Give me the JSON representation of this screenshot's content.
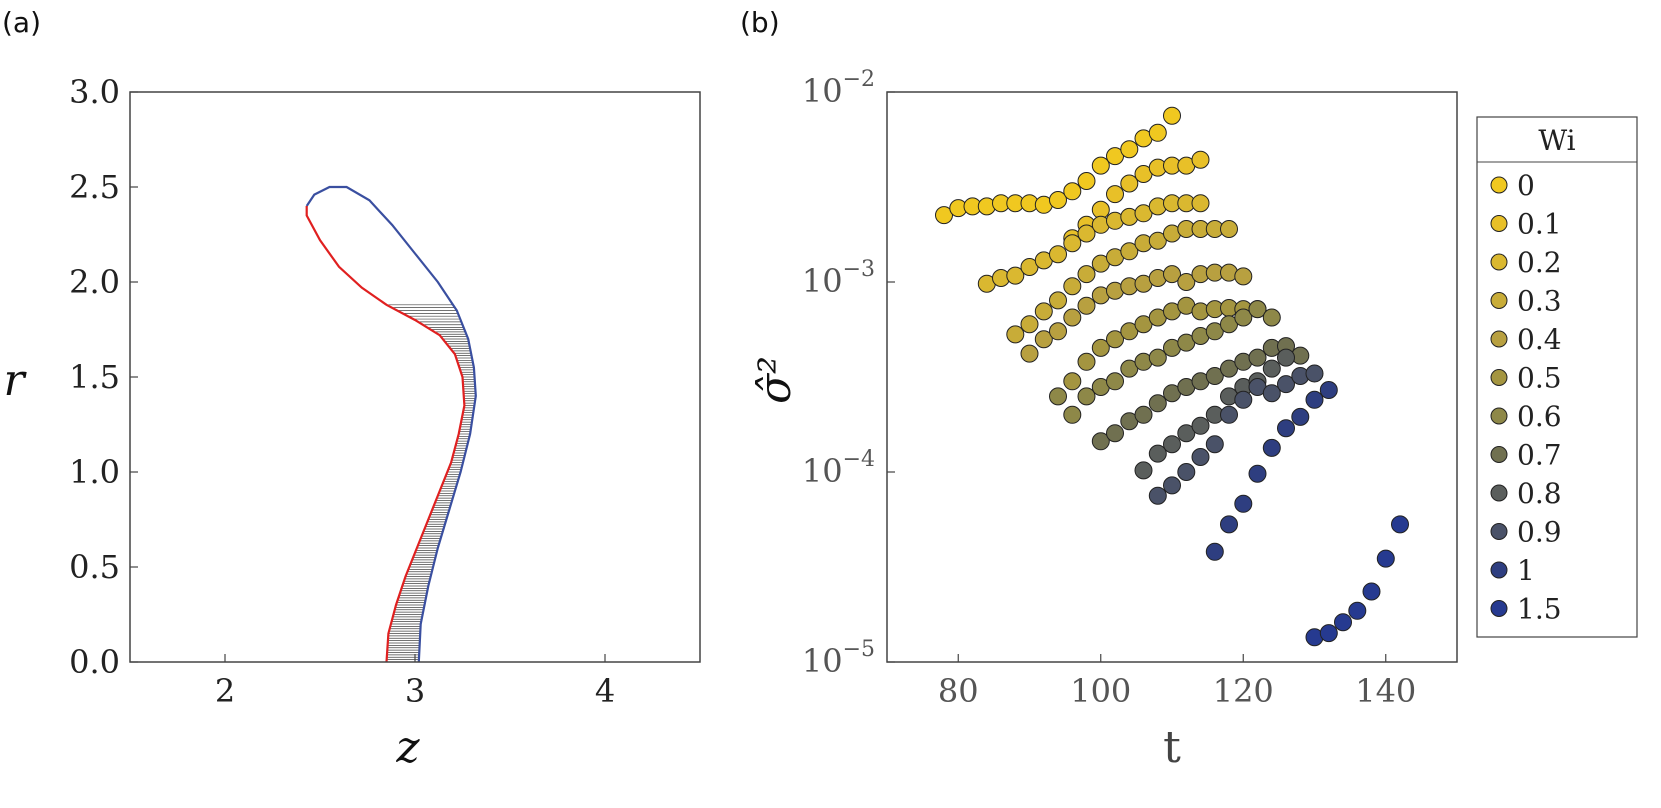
{
  "chart_data": [
    {
      "panel_label": "(a)",
      "type": "line",
      "xlabel": "z",
      "ylabel": "r",
      "xlim": [
        1.5,
        4.5
      ],
      "ylim": [
        0.0,
        3.0
      ],
      "xticks": [
        "2",
        "3",
        "4"
      ],
      "yticks": [
        "0.0",
        "0.5",
        "1.0",
        "1.5",
        "2.0",
        "2.5",
        "3.0"
      ],
      "grid": false,
      "colors": {
        "outer": "#3a4fa0",
        "inner": "#e02020",
        "hatch": "#444444"
      },
      "series": [
        {
          "values": [
            [
              3.02,
              0.0
            ],
            [
              3.03,
              0.2
            ],
            [
              3.07,
              0.4
            ],
            [
              3.12,
              0.6
            ],
            [
              3.18,
              0.8
            ],
            [
              3.24,
              1.0
            ],
            [
              3.29,
              1.2
            ],
            [
              3.32,
              1.4
            ],
            [
              3.31,
              1.55
            ],
            [
              3.28,
              1.7
            ],
            [
              3.22,
              1.85
            ],
            [
              3.12,
              2.0
            ],
            [
              3.0,
              2.15
            ],
            [
              2.88,
              2.3
            ],
            [
              2.76,
              2.43
            ],
            [
              2.64,
              2.5
            ],
            [
              2.55,
              2.5
            ],
            [
              2.47,
              2.46
            ],
            [
              2.43,
              2.4
            ]
          ]
        },
        {
          "values": [
            [
              2.85,
              0.0
            ],
            [
              2.86,
              0.15
            ],
            [
              2.9,
              0.3
            ],
            [
              2.95,
              0.45
            ],
            [
              3.01,
              0.6
            ],
            [
              3.07,
              0.75
            ],
            [
              3.13,
              0.9
            ],
            [
              3.19,
              1.05
            ],
            [
              3.23,
              1.2
            ],
            [
              3.26,
              1.35
            ],
            [
              3.25,
              1.5
            ],
            [
              3.21,
              1.62
            ],
            [
              3.13,
              1.72
            ],
            [
              3.0,
              1.8
            ],
            [
              2.85,
              1.88
            ],
            [
              2.72,
              1.97
            ],
            [
              2.6,
              2.08
            ],
            [
              2.5,
              2.22
            ],
            [
              2.43,
              2.35
            ],
            [
              2.43,
              2.4
            ]
          ]
        }
      ]
    },
    {
      "panel_label": "(b)",
      "type": "scatter",
      "xlabel": "t",
      "ylabel": "σ̂²",
      "xlim": [
        70,
        150
      ],
      "ylim": [
        1e-05,
        0.01
      ],
      "yscale": "log",
      "xticks": [
        "80",
        "100",
        "120",
        "140"
      ],
      "yticks": [
        {
          "base": "10",
          "exp": "−2"
        },
        {
          "base": "10",
          "exp": "−3"
        },
        {
          "base": "10",
          "exp": "−4"
        },
        {
          "base": "10",
          "exp": "−5"
        }
      ],
      "grid": false,
      "legend": {
        "title": "Wi",
        "position": "right, outside"
      },
      "series": [
        {
          "name": "0",
          "color": "#f0c820",
          "x": [
            78,
            80,
            82,
            84,
            86,
            88,
            90,
            92,
            94,
            96,
            98,
            100,
            102,
            104,
            106,
            108,
            110
          ],
          "y": [
            0.00225,
            0.00245,
            0.0025,
            0.0025,
            0.0026,
            0.0026,
            0.0026,
            0.00255,
            0.0027,
            0.003,
            0.0034,
            0.0041,
            0.0046,
            0.005,
            0.0057,
            0.0061,
            0.0075
          ]
        },
        {
          "name": "0.1",
          "color": "#e8c028",
          "x": [
            96,
            98,
            100,
            102,
            104,
            106,
            108,
            110,
            112,
            114
          ],
          "y": [
            0.0017,
            0.002,
            0.0024,
            0.0029,
            0.0033,
            0.0037,
            0.004,
            0.0041,
            0.0041,
            0.0044
          ]
        },
        {
          "name": "0.2",
          "color": "#dab830",
          "x": [
            84,
            86,
            88,
            90,
            92,
            94,
            96,
            98,
            100,
            102,
            104,
            106,
            108,
            110,
            112,
            114
          ],
          "y": [
            0.00098,
            0.00105,
            0.00108,
            0.0012,
            0.0013,
            0.0014,
            0.0016,
            0.0018,
            0.002,
            0.0021,
            0.0022,
            0.0023,
            0.0025,
            0.0026,
            0.0026,
            0.0026
          ]
        },
        {
          "name": "0.3",
          "color": "#c8ac38",
          "x": [
            88,
            90,
            92,
            94,
            96,
            98,
            100,
            102,
            104,
            106,
            108,
            110,
            112,
            114,
            116,
            118
          ],
          "y": [
            0.00053,
            0.0006,
            0.0007,
            0.0008,
            0.00095,
            0.0011,
            0.00125,
            0.00135,
            0.00145,
            0.0016,
            0.00165,
            0.0018,
            0.0019,
            0.0019,
            0.0019,
            0.0019
          ]
        },
        {
          "name": "0.4",
          "color": "#b8a040",
          "x": [
            90,
            92,
            94,
            96,
            98,
            100,
            102,
            104,
            106,
            108,
            110,
            112,
            114,
            116,
            118,
            120
          ],
          "y": [
            0.00042,
            0.0005,
            0.00055,
            0.00065,
            0.00075,
            0.00085,
            0.0009,
            0.00095,
            0.00098,
            0.00105,
            0.0011,
            0.001,
            0.0011,
            0.00112,
            0.00112,
            0.00107
          ]
        },
        {
          "name": "0.5",
          "color": "#a49540",
          "x": [
            96,
            98,
            100,
            102,
            104,
            106,
            108,
            110,
            112,
            114,
            116,
            118,
            120,
            122
          ],
          "y": [
            0.0003,
            0.00038,
            0.00045,
            0.0005,
            0.00055,
            0.0006,
            0.00065,
            0.0007,
            0.00075,
            0.0007,
            0.00072,
            0.00073,
            0.00072,
            0.00072
          ]
        },
        {
          "name": "0.6",
          "color": "#8e8848",
          "x": [
            94,
            96,
            98,
            100,
            102,
            104,
            106,
            108,
            110,
            112,
            114,
            116,
            118,
            120,
            122,
            124
          ],
          "y": [
            0.00025,
            0.0002,
            0.00025,
            0.00028,
            0.0003,
            0.00035,
            0.00038,
            0.0004,
            0.00045,
            0.00048,
            0.00052,
            0.00055,
            0.0006,
            0.00065,
            0.00072,
            0.00065
          ]
        },
        {
          "name": "0.7",
          "color": "#707050",
          "x": [
            100,
            102,
            104,
            106,
            108,
            110,
            112,
            114,
            116,
            118,
            120,
            122,
            124,
            126,
            128
          ],
          "y": [
            0.000145,
            0.00016,
            0.000185,
            0.0002,
            0.00023,
            0.00026,
            0.00028,
            0.0003,
            0.00032,
            0.00035,
            0.00038,
            0.0004,
            0.00045,
            0.00046,
            0.00041
          ]
        },
        {
          "name": "0.8",
          "color": "#5a5e5c",
          "x": [
            106,
            108,
            110,
            112,
            114,
            116,
            118,
            120,
            122,
            124,
            126
          ],
          "y": [
            0.000102,
            0.000125,
            0.00014,
            0.00016,
            0.000175,
            0.0002,
            0.00025,
            0.00028,
            0.0003,
            0.00035,
            0.0004
          ]
        },
        {
          "name": "0.9",
          "color": "#4a5268",
          "x": [
            108,
            110,
            112,
            114,
            116,
            118,
            120,
            122,
            124,
            126,
            128,
            130
          ],
          "y": [
            7.5e-05,
            8.5e-05,
            0.0001,
            0.00012,
            0.00014,
            0.0002,
            0.00024,
            0.00028,
            0.00026,
            0.00029,
            0.00032,
            0.00033
          ]
        },
        {
          "name": "1",
          "color": "#2e3e80",
          "x": [
            116,
            118,
            120,
            122,
            124,
            126,
            128,
            130,
            132
          ],
          "y": [
            3.8e-05,
            5.3e-05,
            6.8e-05,
            9.8e-05,
            0.000134,
            0.00017,
            0.000195,
            0.00024,
            0.00027
          ]
        },
        {
          "name": "1.5",
          "color": "#263a90",
          "x": [
            130,
            132,
            134,
            136,
            138,
            140,
            142
          ],
          "y": [
            1.35e-05,
            1.42e-05,
            1.62e-05,
            1.86e-05,
            2.35e-05,
            3.5e-05,
            5.3e-05
          ]
        }
      ]
    }
  ]
}
